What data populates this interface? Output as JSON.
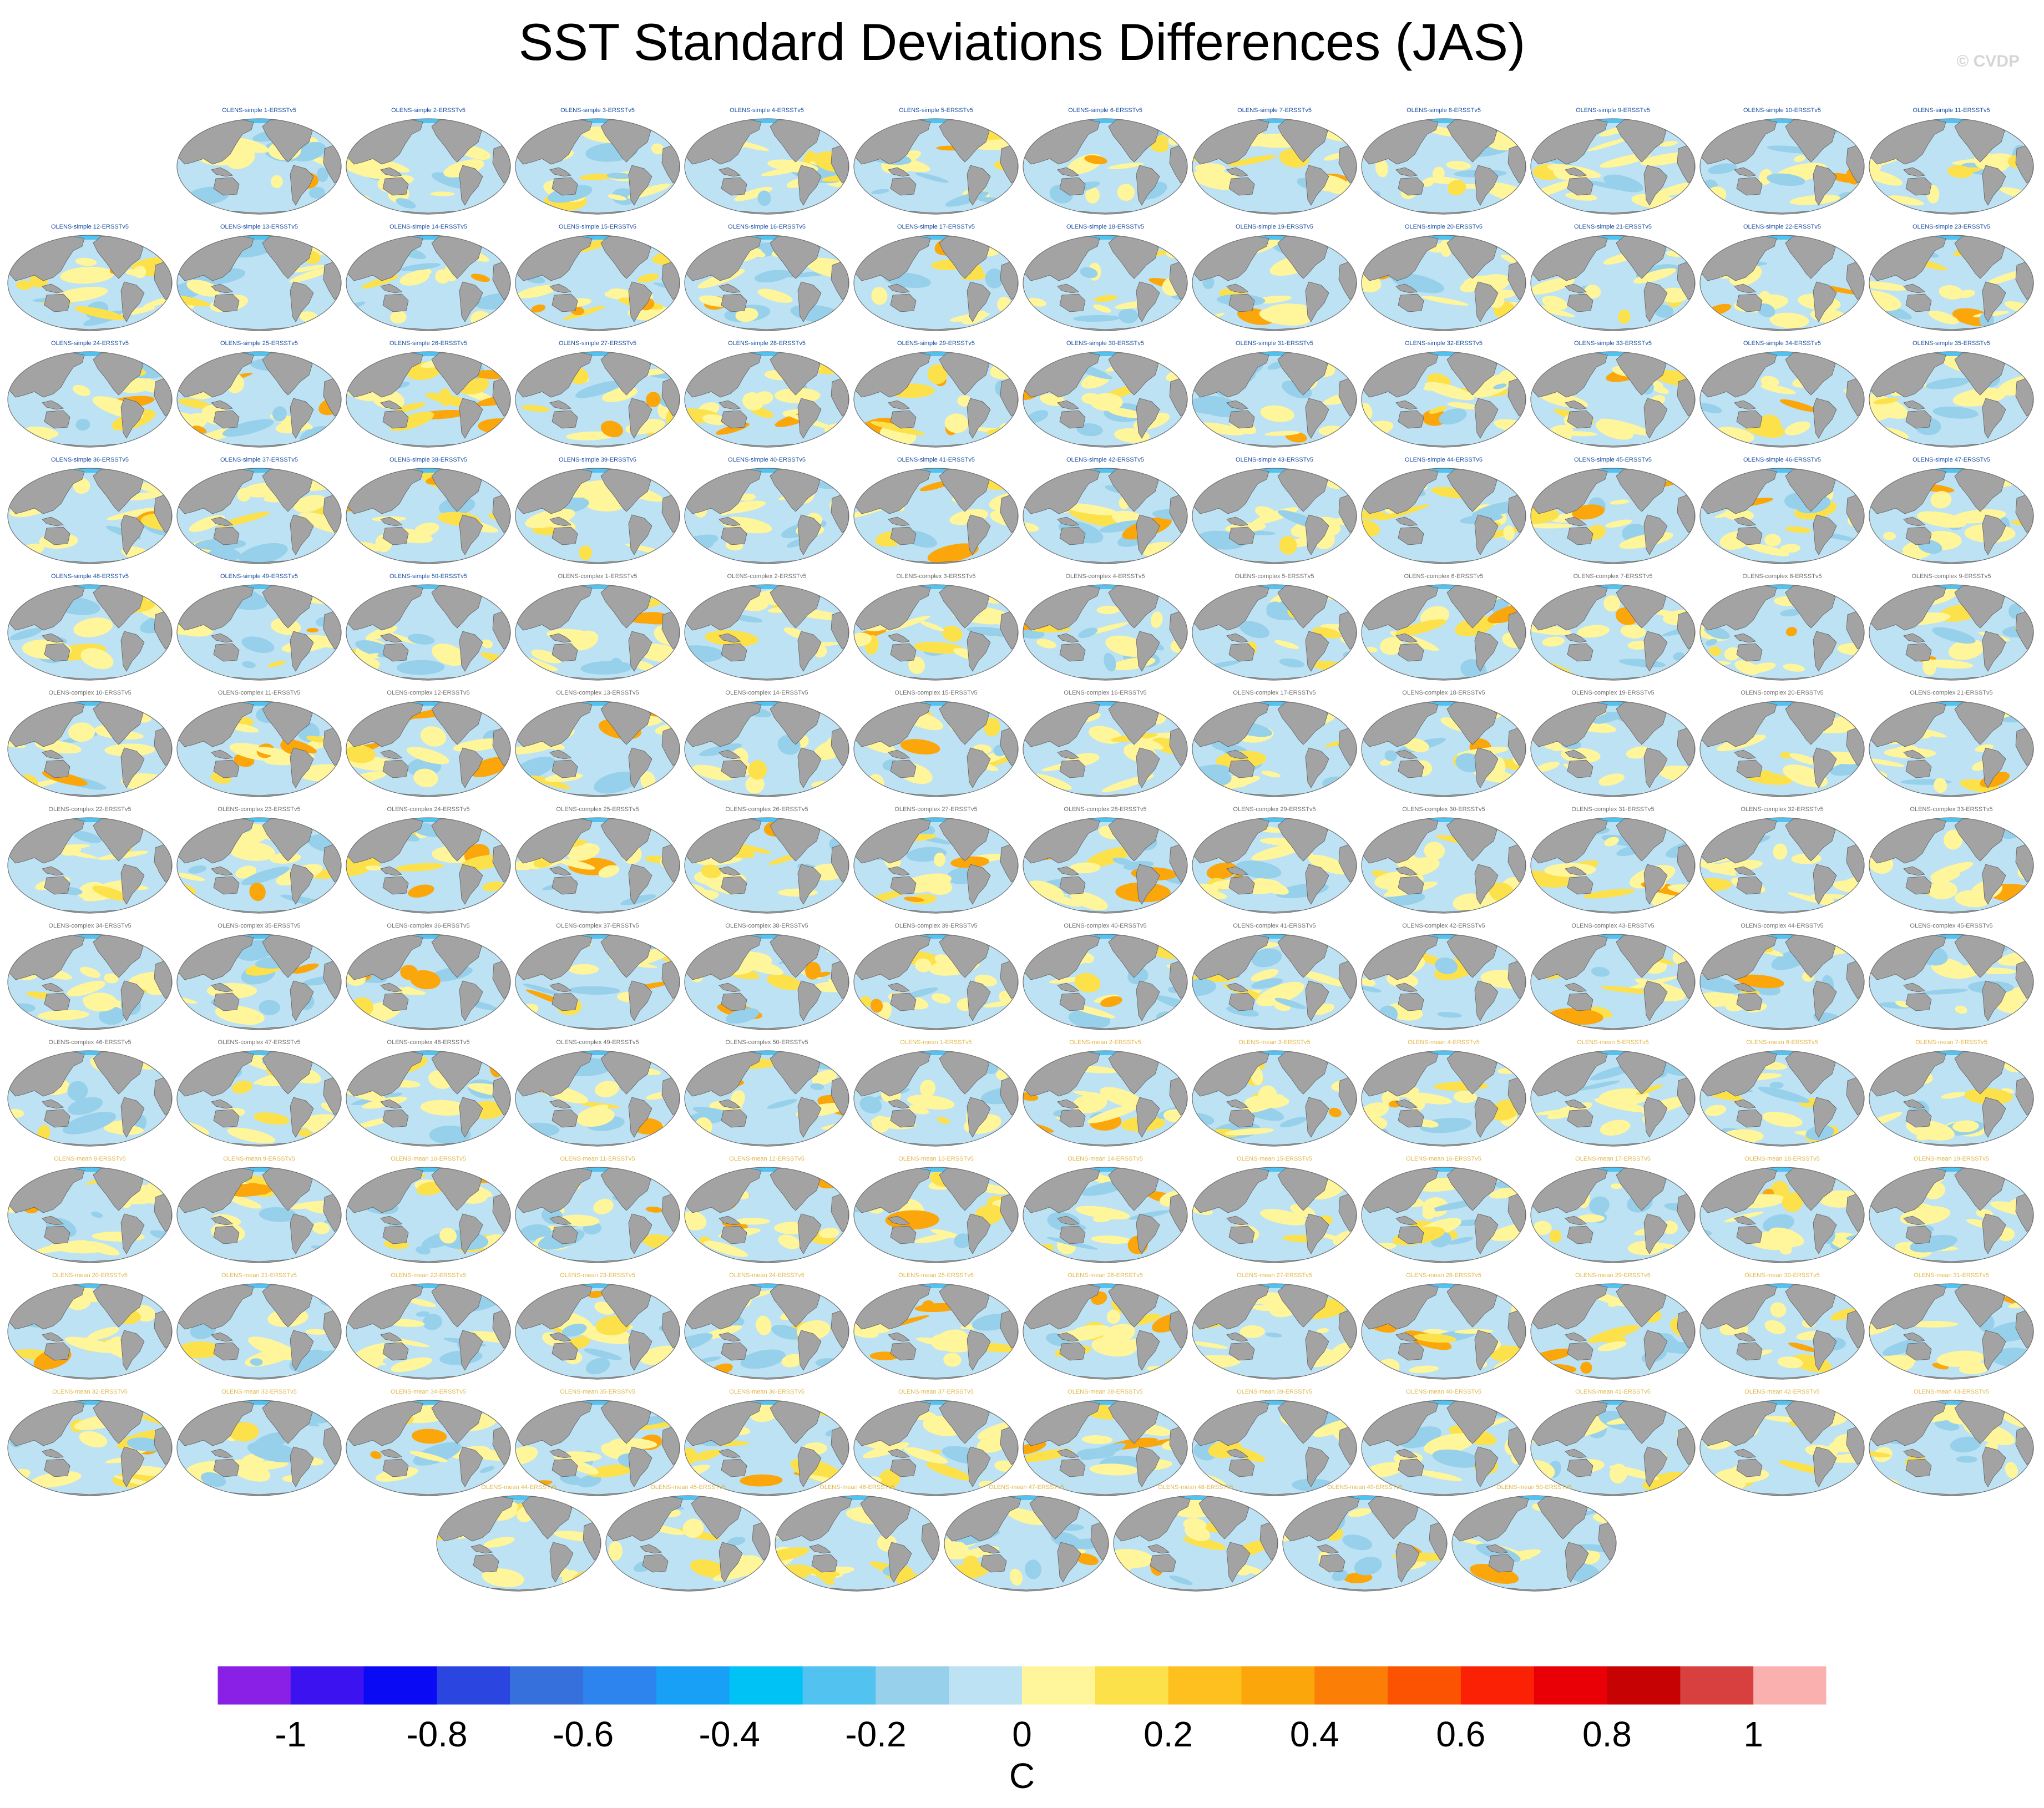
{
  "title": "SST Standard Deviations Differences (JAS)",
  "watermark": "© CVDP",
  "chart_data": {
    "type": "heatmap",
    "title": "SST Standard Deviations Differences (JAS)",
    "variable": "SST standard deviation difference",
    "season": "JAS",
    "panel_count": 150,
    "panel_title_pattern": "OLENS-{variant} {n}-ERSSTv5",
    "panel_groups": [
      {
        "variant": "simple",
        "members": [
          1,
          50
        ],
        "title_color": "#1a4fa0"
      },
      {
        "variant": "complex",
        "members": [
          1,
          50
        ],
        "title_color": "#6e6e6e"
      },
      {
        "variant": "mean",
        "members": [
          1,
          50
        ],
        "title_color": "#e0b84c"
      }
    ],
    "colorbar": {
      "label": "C",
      "ticks": [
        "-1",
        "-0.8",
        "-0.6",
        "-0.4",
        "-0.2",
        "0",
        "0.2",
        "0.4",
        "0.6",
        "0.8",
        "1"
      ],
      "tick_values": [
        -1,
        -0.8,
        -0.6,
        -0.4,
        -0.2,
        0,
        0.2,
        0.4,
        0.6,
        0.8,
        1
      ],
      "levels": [
        -1.1,
        -1,
        -0.9,
        -0.8,
        -0.7,
        -0.6,
        -0.5,
        -0.4,
        -0.3,
        -0.2,
        -0.1,
        0,
        0.1,
        0.2,
        0.3,
        0.4,
        0.5,
        0.6,
        0.7,
        0.8,
        0.9,
        1,
        1.1
      ],
      "colors": [
        "#8a1fe6",
        "#3c12f0",
        "#0a0af5",
        "#2b46e0",
        "#3670dd",
        "#2d84ee",
        "#18a0f7",
        "#00c2f5",
        "#52c2f0",
        "#96d0ea",
        "#bde2f3",
        "#fff59b",
        "#fde14a",
        "#fdc01e",
        "#fba60a",
        "#fb7f06",
        "#fb5302",
        "#fb2104",
        "#e80006",
        "#c60203",
        "#d84040",
        "#fbb0b0"
      ]
    },
    "palette": {
      "ocean_negative": "#bde2f3",
      "ocean_positive": "#fff59b",
      "ocean_positive_strong": "#fde14a",
      "ocean_negative_strong": "#96d0ea",
      "land": "#a3a3a3",
      "outline": "#707070"
    }
  }
}
